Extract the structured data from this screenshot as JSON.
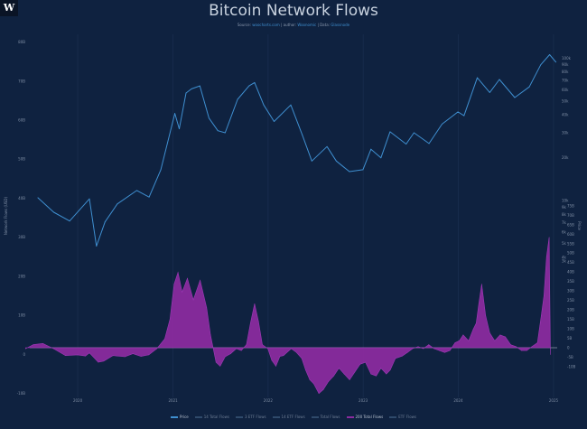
{
  "logo_text": "W",
  "page": {
    "title": "Bitcoin Network Flows",
    "subtitle_prefix": "Source:",
    "subtitle_source": "woocharts.com",
    "subtitle_sep1": "| author:",
    "subtitle_author": "Woonomic",
    "subtitle_sep2": "| Data:",
    "subtitle_data": "Glassnode"
  },
  "colors": {
    "background": "#0f2240",
    "price_line": "#3f8fd0",
    "flows_fill": "#8a2b9e",
    "flows_stroke": "#a53bbd",
    "gridline": "#1d3253"
  },
  "chart_data": {
    "type": "line",
    "title": "Bitcoin Network Flows",
    "x_ticks": [
      "2020",
      "2021",
      "2022",
      "2023",
      "2024",
      "2025"
    ],
    "x_range": [
      "2019-07-01",
      "2025-01-15"
    ],
    "left_axis": {
      "label": "Network Flows (USD)",
      "ticks": [
        "-10B",
        "0",
        "10B",
        "20B",
        "30B",
        "40B",
        "50B",
        "60B",
        "70B",
        "80B"
      ],
      "ylim": [
        -11,
        82
      ]
    },
    "right_axis": {
      "label": "Price",
      "price_scale": "log",
      "price_ticks": [
        "3k",
        "4k",
        "5k",
        "6k",
        "7k",
        "8k",
        "9k",
        "10k",
        "20k",
        "30k",
        "40k",
        "50k",
        "60k",
        "70k",
        "80k",
        "90k",
        "100k"
      ],
      "flow_ticks": [
        "-10B",
        "-5B",
        "0",
        "5B",
        "10B",
        "15B",
        "20B",
        "25B",
        "30B",
        "35B",
        "40B",
        "45B",
        "50B",
        "55B",
        "60B",
        "65B",
        "70B",
        "75B"
      ]
    },
    "series": [
      {
        "name": "Price",
        "axis": "right",
        "x": [
          "2019-08-01",
          "2019-10-01",
          "2019-12-01",
          "2020-02-15",
          "2020-03-13",
          "2020-04-15",
          "2020-06-01",
          "2020-08-15",
          "2020-10-01",
          "2020-11-15",
          "2021-01-08",
          "2021-01-25",
          "2021-02-20",
          "2021-03-13",
          "2021-04-14",
          "2021-05-19",
          "2021-06-22",
          "2021-07-20",
          "2021-09-06",
          "2021-10-20",
          "2021-11-10",
          "2021-12-15",
          "2022-01-24",
          "2022-03-29",
          "2022-05-12",
          "2022-06-18",
          "2022-08-15",
          "2022-09-20",
          "2022-11-09",
          "2022-12-31",
          "2023-01-31",
          "2023-03-10",
          "2023-04-14",
          "2023-06-15",
          "2023-07-15",
          "2023-09-11",
          "2023-10-31",
          "2023-12-31",
          "2024-01-23",
          "2024-03-14",
          "2024-05-01",
          "2024-06-07",
          "2024-08-05",
          "2024-09-30",
          "2024-11-13",
          "2024-12-17",
          "2025-01-10"
        ],
        "values": [
          10500,
          8300,
          7200,
          10300,
          4800,
          7100,
          9500,
          11800,
          10600,
          16500,
          41000,
          32000,
          57000,
          61000,
          64000,
          38000,
          31000,
          30000,
          51500,
          64000,
          67500,
          47000,
          36000,
          47000,
          29000,
          19000,
          24000,
          19000,
          16000,
          16500,
          23000,
          20000,
          30500,
          25000,
          30000,
          25200,
          34500,
          42000,
          39500,
          73000,
          57500,
          71000,
          53000,
          63000,
          90000,
          106000,
          94000
        ]
      },
      {
        "name": "200 Total Flows",
        "axis": "left",
        "x": [
          "2019-06-15",
          "2019-07-15",
          "2019-08-20",
          "2019-09-30",
          "2019-11-15",
          "2019-12-31",
          "2020-01-31",
          "2020-02-15",
          "2020-03-20",
          "2020-04-10",
          "2020-05-15",
          "2020-06-30",
          "2020-07-31",
          "2020-08-31",
          "2020-09-30",
          "2020-10-31",
          "2020-11-30",
          "2020-12-20",
          "2021-01-05",
          "2021-01-20",
          "2021-02-05",
          "2021-02-25",
          "2021-03-20",
          "2021-04-15",
          "2021-05-10",
          "2021-05-25",
          "2021-06-15",
          "2021-07-01",
          "2021-07-20",
          "2021-08-10",
          "2021-09-01",
          "2021-09-20",
          "2021-10-10",
          "2021-10-25",
          "2021-11-10",
          "2021-11-25",
          "2021-12-10",
          "2021-12-31",
          "2022-01-15",
          "2022-01-31",
          "2022-02-15",
          "2022-03-01",
          "2022-03-31",
          "2022-04-20",
          "2022-05-10",
          "2022-05-25",
          "2022-06-10",
          "2022-06-25",
          "2022-07-15",
          "2022-08-01",
          "2022-08-20",
          "2022-09-10",
          "2022-09-30",
          "2022-10-20",
          "2022-11-10",
          "2022-11-30",
          "2022-12-20",
          "2023-01-10",
          "2023-01-31",
          "2023-02-20",
          "2023-03-10",
          "2023-03-31",
          "2023-04-15",
          "2023-05-05",
          "2023-05-31",
          "2023-06-20",
          "2023-07-10",
          "2023-07-31",
          "2023-08-20",
          "2023-09-10",
          "2023-09-30",
          "2023-10-20",
          "2023-11-10",
          "2023-11-30",
          "2023-12-20",
          "2024-01-05",
          "2024-01-20",
          "2024-02-10",
          "2024-02-28",
          "2024-03-10",
          "2024-03-20",
          "2024-03-31",
          "2024-04-15",
          "2024-05-01",
          "2024-05-20",
          "2024-06-10",
          "2024-06-30",
          "2024-07-20",
          "2024-08-10",
          "2024-08-31",
          "2024-09-20",
          "2024-10-10",
          "2024-10-31",
          "2024-11-15",
          "2024-11-25",
          "2024-12-05",
          "2024-12-15",
          "2024-12-20"
        ],
        "values": [
          1.5,
          2.5,
          2.8,
          1.5,
          -0.3,
          -0.1,
          -0.4,
          0.4,
          -2.0,
          -1.7,
          -0.3,
          -0.6,
          0.2,
          -0.5,
          -0.1,
          1.5,
          4.0,
          9.0,
          18.0,
          21.0,
          16.0,
          19.5,
          14.0,
          19.0,
          12.0,
          5.0,
          -2.0,
          -3.0,
          -0.6,
          0.2,
          1.5,
          1.0,
          2.5,
          8.0,
          13.0,
          8.5,
          2.5,
          1.5,
          -1.5,
          -3.0,
          -0.5,
          -0.3,
          1.5,
          0.5,
          -1.0,
          -4.0,
          -6.5,
          -7.5,
          -10.0,
          -9.0,
          -7.0,
          -5.5,
          -3.5,
          -5.0,
          -6.5,
          -4.5,
          -2.5,
          -2.0,
          -5.0,
          -5.5,
          -3.5,
          -5.0,
          -4.0,
          -1.0,
          -0.4,
          0.5,
          1.5,
          2.0,
          1.5,
          2.5,
          1.5,
          1.0,
          0.5,
          1.0,
          3.0,
          3.5,
          5.0,
          3.5,
          6.5,
          8.0,
          13.0,
          18.0,
          10.0,
          5.5,
          3.5,
          5.0,
          4.5,
          2.5,
          2.0,
          1.0,
          1.0,
          2.0,
          3.0,
          10.0,
          15.0,
          25.0,
          30.0,
          0.0
        ]
      }
    ],
    "legend": {
      "placement": "bottom",
      "items": [
        {
          "name": "Price",
          "color": "#3f8fd0",
          "active": true
        },
        {
          "name": "14 Total Flows",
          "color": "#2f4a6b",
          "active": false
        },
        {
          "name": "3 ETF Flows",
          "color": "#2f4a6b",
          "active": false
        },
        {
          "name": "14 ETF Flows",
          "color": "#2f4a6b",
          "active": false
        },
        {
          "name": "Total Flows",
          "color": "#2f4a6b",
          "active": false
        },
        {
          "name": "200 Total Flows",
          "color": "#8a2b9e",
          "active": true
        },
        {
          "name": "ETF Flows",
          "color": "#2f4a6b",
          "active": false
        }
      ]
    },
    "grid": "vertical"
  }
}
